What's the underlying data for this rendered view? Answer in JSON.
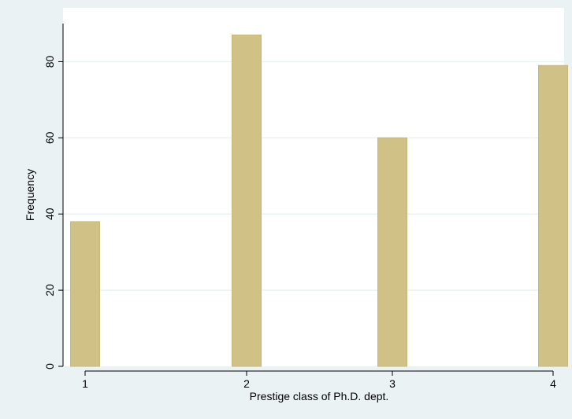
{
  "chart_data": {
    "type": "bar",
    "categories": [
      "1",
      "2",
      "3",
      "4"
    ],
    "values": [
      38,
      87,
      60,
      79
    ],
    "xlabel": "Prestige class of Ph.D. dept.",
    "ylabel": "Frequency",
    "ylim": [
      0,
      90
    ],
    "yticks": [
      0,
      20,
      40,
      60,
      80
    ],
    "xticks": [
      1,
      2,
      3,
      4
    ],
    "grid": true,
    "legend": "none"
  },
  "colors": {
    "frame_background": "#eaf2f3",
    "plot_background": "#ffffff",
    "bar_fill": "#d0c286",
    "bar_edge": "#c8b97a",
    "grid": "#eaf2f3",
    "axis": "#000000"
  }
}
